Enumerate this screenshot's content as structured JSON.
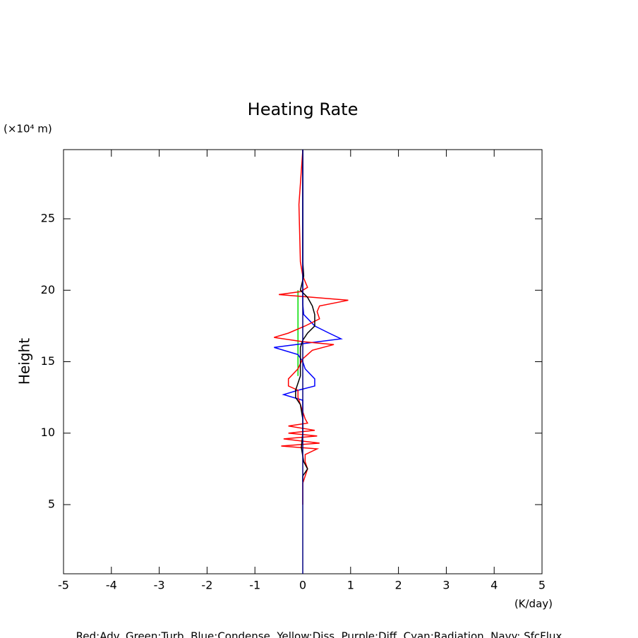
{
  "chart_data": {
    "type": "line",
    "title": "Heating Rate",
    "x_label": "(K/day)",
    "y_label": "Height",
    "y_unit": "(×10⁴ m)",
    "note": "Red:Adv.  Green:Turb.  Blue:Condense.  Yellow:Diss.  Purple:Diff.  Cyan:Radiation.  Navy: SfcFlux",
    "xlim": [
      -5,
      5
    ],
    "xticks": [
      -5,
      -4,
      -3,
      -2,
      -1,
      0,
      1,
      2,
      3,
      4,
      5
    ],
    "ylim": [
      0.16,
      29.84
    ],
    "yticks": [
      5,
      10,
      15,
      20,
      25
    ],
    "series": [
      {
        "color": "#00dd00",
        "heights": [
          14.0,
          20.0
        ],
        "values": [
          -0.1,
          -0.1
        ]
      },
      {
        "color": "#0000ff",
        "heights": [
          29.8,
          19,
          18.3,
          17.5,
          17.0,
          16.6,
          16.3,
          16.0,
          15.5,
          15.0,
          14.5,
          13.8,
          13.3,
          13.0,
          12.7,
          12.3,
          11
        ],
        "values": [
          0,
          0,
          0.02,
          0.25,
          0.55,
          0.8,
          0.1,
          -0.6,
          -0.1,
          0,
          0.05,
          0.25,
          0.25,
          -0.1,
          -0.4,
          0,
          0
        ]
      },
      {
        "color": "#ff0000",
        "heights": [
          29.8,
          26,
          22,
          21,
          20.2,
          19.9,
          19.7,
          19.3,
          18.9,
          18.5,
          18.0,
          17.5,
          17.0,
          16.7,
          16.4,
          16.2,
          15.8,
          15.2,
          14.5,
          13.8,
          13.3,
          13.0,
          12.5,
          12.0,
          11.5,
          11.0,
          10.7,
          10.5,
          10.2,
          10.0,
          9.8,
          9.6,
          9.3,
          9.1,
          8.9,
          8.5,
          8.0,
          7.5,
          7.0,
          6.5,
          5.0
        ],
        "values": [
          0,
          -0.08,
          -0.05,
          0,
          0.1,
          -0.05,
          -0.5,
          0.95,
          0.35,
          0.3,
          0.35,
          0.05,
          -0.3,
          -0.6,
          0,
          0.65,
          0.2,
          0,
          -0.1,
          -0.3,
          -0.3,
          -0.1,
          -0.1,
          -0.05,
          0,
          0.05,
          0.1,
          -0.3,
          0.25,
          -0.3,
          0.3,
          -0.4,
          0.35,
          -0.45,
          0.3,
          0.05,
          0.05,
          0.1,
          0.05,
          0,
          0
        ]
      },
      {
        "color": "#000000",
        "heights": [
          29.8,
          22,
          21,
          20,
          19.5,
          18.9,
          18.3,
          17.5,
          17.0,
          16.5,
          16.0,
          15.0,
          14.0,
          13,
          12.5,
          12.0,
          11.0,
          10,
          9,
          8,
          7.5,
          7.0,
          6.6
        ],
        "values": [
          0,
          0,
          0.02,
          -0.05,
          0.1,
          0.2,
          0.25,
          0.25,
          0.1,
          0,
          -0.05,
          -0.05,
          -0.05,
          -0.15,
          -0.15,
          -0.05,
          0,
          0,
          -0.03,
          0.02,
          0.1,
          0,
          0
        ]
      },
      {
        "color": "#000080",
        "heights": [
          0.16,
          29.84
        ],
        "values": [
          0,
          0
        ]
      }
    ]
  }
}
